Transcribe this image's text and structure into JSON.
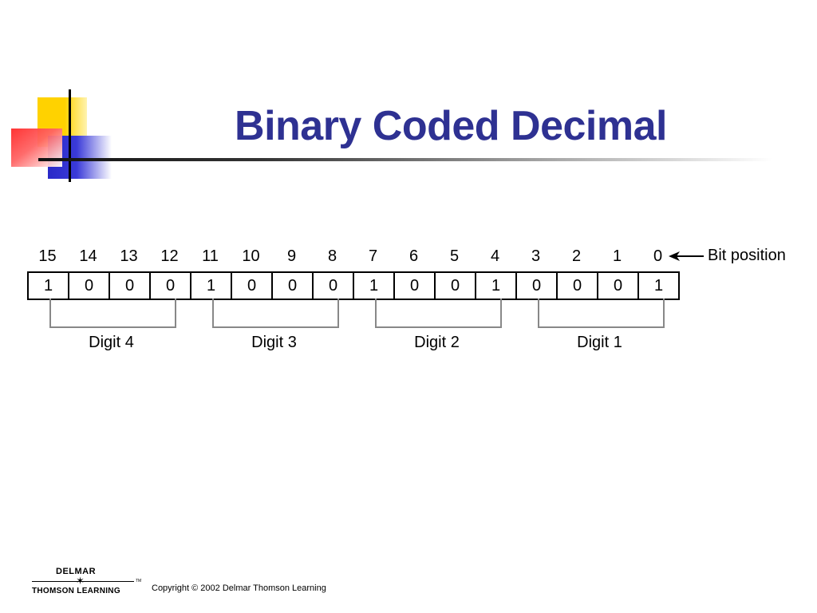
{
  "slide": {
    "title": "Binary Coded Decimal"
  },
  "diagram": {
    "bit_positions": [
      "15",
      "14",
      "13",
      "12",
      "11",
      "10",
      "9",
      "8",
      "7",
      "6",
      "5",
      "4",
      "3",
      "2",
      "1",
      "0"
    ],
    "bit_values": [
      "1",
      "0",
      "0",
      "0",
      "1",
      "0",
      "0",
      "0",
      "1",
      "0",
      "0",
      "1",
      "0",
      "0",
      "0",
      "1"
    ],
    "bit_position_label": "Bit position",
    "digits": [
      "Digit 4",
      "Digit 3",
      "Digit 2",
      "Digit 1"
    ]
  },
  "footer": {
    "logo_top": "DELMAR",
    "logo_bottom": "THOMSON LEARNING",
    "logo_tm": "TM",
    "copyright": "Copyright © 2002 Delmar Thomson Learning"
  },
  "colors": {
    "title": "#2e3192",
    "deco_yellow": "#ffd200",
    "deco_blue": "#2929c8",
    "deco_red": "#ff2a2a"
  }
}
